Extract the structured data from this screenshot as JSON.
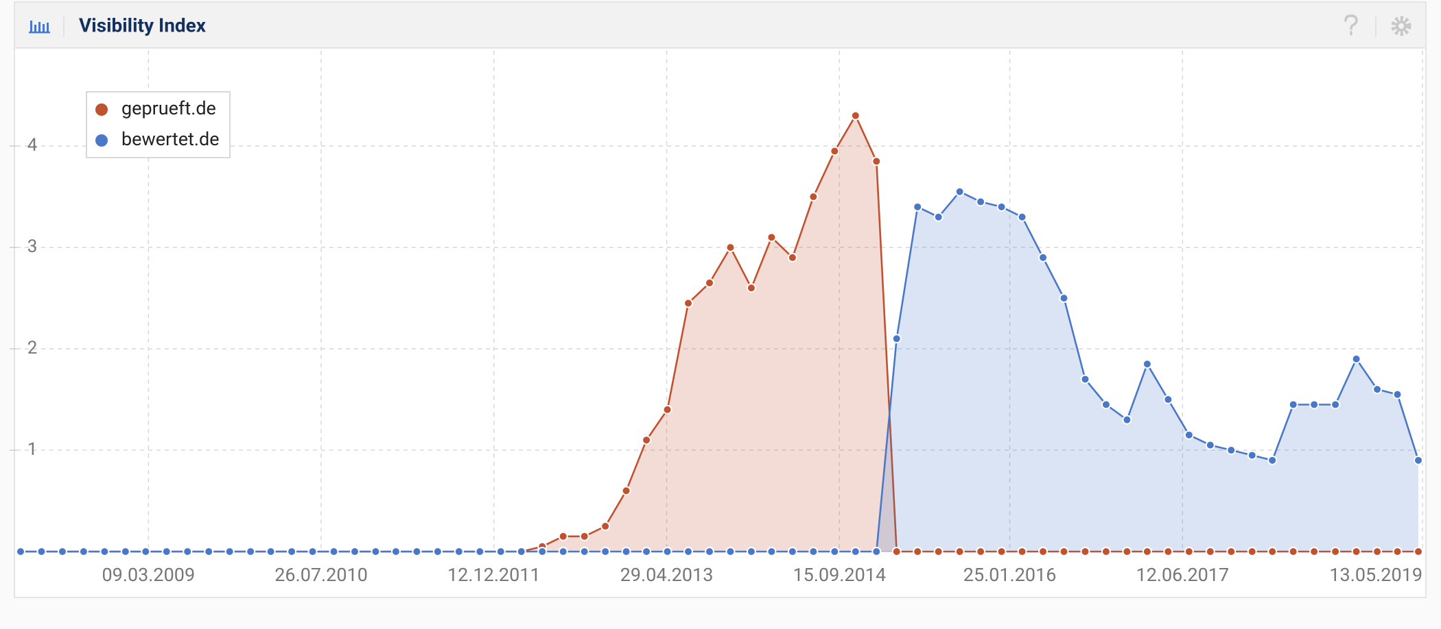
{
  "chart_data": {
    "type": "area",
    "title": "Visibility Index",
    "x": [
      "2008-03-01",
      "2008-05-01",
      "2008-07-01",
      "2008-09-01",
      "2008-11-01",
      "2009-01-01",
      "2009-03-01",
      "2009-05-01",
      "2009-07-01",
      "2009-09-01",
      "2009-11-01",
      "2010-01-01",
      "2010-03-01",
      "2010-05-01",
      "2010-07-01",
      "2010-09-01",
      "2010-11-01",
      "2011-01-01",
      "2011-03-01",
      "2011-05-01",
      "2011-07-01",
      "2011-09-01",
      "2011-11-01",
      "2012-01-01",
      "2012-03-01",
      "2012-05-01",
      "2012-07-01",
      "2012-09-01",
      "2012-11-01",
      "2013-01-01",
      "2013-03-01",
      "2013-05-01",
      "2013-07-01",
      "2013-09-01",
      "2013-11-01",
      "2014-01-01",
      "2014-03-01",
      "2014-05-01",
      "2014-07-01",
      "2014-09-01",
      "2014-11-01",
      "2015-01-01",
      "2015-03-01",
      "2015-05-01",
      "2015-07-01",
      "2015-09-01",
      "2015-11-01",
      "2016-01-01",
      "2016-03-01",
      "2016-05-01",
      "2016-07-01",
      "2016-09-01",
      "2016-11-01",
      "2017-01-01",
      "2017-03-01",
      "2017-05-01",
      "2017-07-01",
      "2017-09-01",
      "2017-11-01",
      "2018-01-01",
      "2018-03-01",
      "2018-05-01",
      "2018-07-01",
      "2018-09-01",
      "2018-11-01",
      "2019-01-01",
      "2019-03-01",
      "2019-05-01"
    ],
    "series": [
      {
        "name": "geprueft.de",
        "color": "#c0522f",
        "values": [
          0,
          0,
          0,
          0,
          0,
          0,
          0,
          0,
          0,
          0,
          0,
          0,
          0,
          0,
          0,
          0,
          0,
          0,
          0,
          0,
          0,
          0,
          0,
          0,
          0,
          0.05,
          0.15,
          0.15,
          0.25,
          0.6,
          1.1,
          1.4,
          2.45,
          2.65,
          3.0,
          2.6,
          3.1,
          2.9,
          3.5,
          3.95,
          4.3,
          3.85,
          0,
          0,
          0,
          0,
          0,
          0,
          0,
          0,
          0,
          0,
          0,
          0,
          0,
          0,
          0,
          0,
          0,
          0,
          0,
          0,
          0,
          0,
          0,
          0,
          0,
          0
        ]
      },
      {
        "name": "bewertet.de",
        "color": "#4a78c8",
        "values": [
          0,
          0,
          0,
          0,
          0,
          0,
          0,
          0,
          0,
          0,
          0,
          0,
          0,
          0,
          0,
          0,
          0,
          0,
          0,
          0,
          0,
          0,
          0,
          0,
          0,
          0,
          0,
          0,
          0,
          0,
          0,
          0,
          0,
          0,
          0,
          0,
          0,
          0,
          0,
          0,
          0,
          0,
          2.1,
          3.4,
          3.3,
          3.55,
          3.45,
          3.4,
          3.3,
          2.9,
          2.5,
          1.7,
          1.45,
          1.3,
          1.85,
          1.5,
          1.15,
          1.05,
          1.0,
          0.95,
          0.9,
          1.45,
          1.45,
          1.45,
          1.9,
          1.6,
          1.55,
          0.9
        ]
      }
    ],
    "xlim": [
      "2008-02-18",
      "2019-05-13"
    ],
    "xticks": [
      {
        "value": "2009-03-09",
        "label": "09.03.2009"
      },
      {
        "value": "2010-07-26",
        "label": "26.07.2010"
      },
      {
        "value": "2011-12-12",
        "label": "12.12.2011"
      },
      {
        "value": "2013-04-29",
        "label": "29.04.2013"
      },
      {
        "value": "2014-09-15",
        "label": "15.09.2014"
      },
      {
        "value": "2016-01-25",
        "label": "25.01.2016"
      },
      {
        "value": "2017-06-12",
        "label": "12.06.2017"
      },
      {
        "value": "2019-05-13",
        "label": "13.05.2019"
      }
    ],
    "ylim": [
      0,
      4.9
    ],
    "yticks": [
      1,
      2,
      3,
      4
    ],
    "grid": true,
    "legend": "top-left"
  }
}
